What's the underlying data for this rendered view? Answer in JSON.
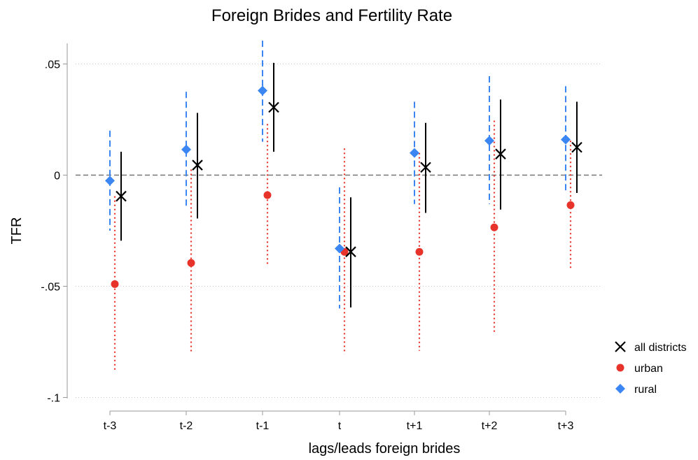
{
  "chart_data": {
    "type": "scatter",
    "title": "Foreign Brides and Fertility Rate",
    "xlabel": "lags/leads foreign brides",
    "ylabel": "TFR",
    "categories": [
      "t-3",
      "t-2",
      "t-1",
      "t",
      "t+1",
      "t+2",
      "t+3"
    ],
    "yticks": [
      0.05,
      0,
      -0.05,
      -0.1
    ],
    "ytick_labels": [
      ".05",
      "0",
      "-.05",
      "-.1"
    ],
    "ylim": [
      -0.1,
      0.06
    ],
    "grid": true,
    "reference_line": 0,
    "legend_position": "right",
    "series": [
      {
        "name": "all districts",
        "marker": "x",
        "color": "#000000",
        "ci_style": "solid",
        "values": [
          -0.0095,
          0.0045,
          0.0305,
          -0.0345,
          0.0035,
          0.0095,
          0.0125
        ],
        "ci_low": [
          -0.0295,
          -0.0195,
          0.0105,
          -0.0595,
          -0.017,
          -0.0155,
          -0.008
        ],
        "ci_high": [
          0.0105,
          0.028,
          0.0505,
          -0.01,
          0.0235,
          0.034,
          0.033
        ]
      },
      {
        "name": "urban",
        "marker": "circle",
        "color": "#e8332a",
        "ci_style": "dotted",
        "values": [
          -0.049,
          -0.0395,
          -0.009,
          -0.0345,
          -0.0345,
          -0.0235,
          -0.0135
        ],
        "ci_low": [
          -0.0885,
          -0.0805,
          -0.041,
          -0.0805,
          -0.079,
          -0.0715,
          -0.0425
        ],
        "ci_high": [
          -0.0095,
          0.0025,
          0.023,
          0.012,
          0.01,
          0.0245,
          0.0155
        ]
      },
      {
        "name": "rural",
        "marker": "diamond",
        "color": "#3c86f4",
        "ci_style": "dashed",
        "values": [
          -0.0025,
          0.0115,
          0.038,
          -0.033,
          0.01,
          0.0155,
          0.016
        ],
        "ci_low": [
          -0.025,
          -0.015,
          0.015,
          -0.06,
          -0.013,
          -0.013,
          -0.008
        ],
        "ci_high": [
          0.02,
          0.0375,
          0.0605,
          -0.0055,
          0.033,
          0.0445,
          0.04
        ]
      }
    ]
  }
}
